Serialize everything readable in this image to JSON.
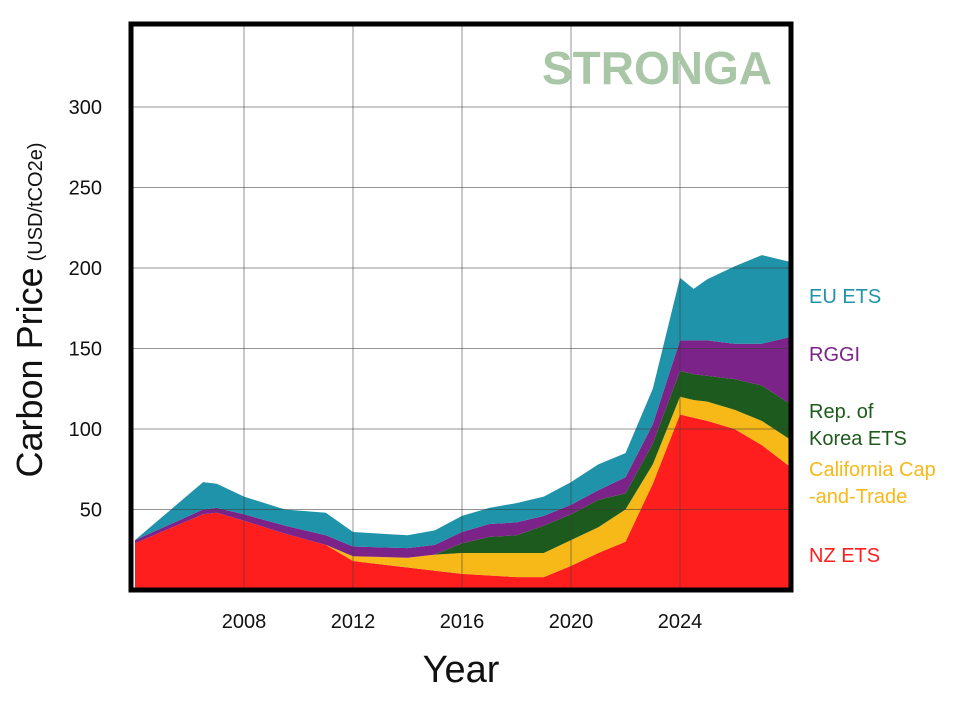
{
  "chart_data": {
    "type": "area",
    "stacked": true,
    "title": "",
    "xlabel": "Year",
    "ylabel": "Carbon Price",
    "ylabel_unit": "(USD/tCO2e)",
    "watermark": "STRONGA",
    "xlim": [
      2004,
      2028
    ],
    "ylim": [
      0,
      350
    ],
    "xticks": [
      2008,
      2012,
      2016,
      2020,
      2024
    ],
    "yticks": [
      50,
      100,
      150,
      200,
      250,
      300
    ],
    "grid": true,
    "legend_position": "right",
    "x": [
      2004,
      2006.5,
      2007,
      2008,
      2009.5,
      2011,
      2012,
      2014,
      2015,
      2016,
      2017,
      2018,
      2019,
      2020,
      2021,
      2022,
      2023,
      2024,
      2024.5,
      2025,
      2026,
      2027,
      2028
    ],
    "series": [
      {
        "name": "NZ ETS",
        "color": "#ff1e1e",
        "label_lines": [
          "NZ ETS"
        ],
        "values": [
          29,
          47,
          48,
          43,
          35,
          28,
          18,
          14,
          12,
          10,
          9,
          8,
          8,
          15,
          23,
          30,
          66,
          109,
          107,
          105,
          100,
          90,
          77
        ]
      },
      {
        "name": "California Cap-and-Trade",
        "color": "#f7b917",
        "label_lines": [
          "California Cap",
          "-and-Trade"
        ],
        "values": [
          0,
          0,
          0,
          0,
          0,
          0,
          3,
          6,
          10,
          13,
          14,
          15,
          15,
          16,
          16,
          20,
          12,
          11,
          11,
          12,
          12,
          15,
          17
        ]
      },
      {
        "name": "Rep. of Korea ETS",
        "color": "#1d5a1d",
        "label_lines": [
          "Rep. of",
          "Korea ETS"
        ],
        "values": [
          0,
          0,
          0,
          0,
          0,
          0,
          0,
          0,
          0,
          6,
          10,
          11,
          17,
          16,
          17,
          10,
          13,
          16,
          16,
          16,
          19,
          22,
          22
        ]
      },
      {
        "name": "RGGI",
        "color": "#7b2388",
        "label_lines": [
          "RGGI"
        ],
        "values": [
          2,
          3,
          3,
          4,
          5,
          6,
          6,
          6,
          6,
          7,
          8,
          8,
          6,
          6,
          6,
          10,
          12,
          19,
          21,
          22,
          22,
          26,
          41
        ]
      },
      {
        "name": "EU ETS",
        "color": "#1e93aa",
        "label_lines": [
          "EU ETS"
        ],
        "values": [
          0,
          17,
          15,
          11,
          10,
          14,
          9,
          8,
          9,
          10,
          10,
          12,
          12,
          14,
          16,
          15,
          22,
          39,
          32,
          38,
          48,
          55,
          47
        ]
      }
    ],
    "legend_order": [
      "EU ETS",
      "RGGI",
      "Rep. of Korea ETS",
      "California Cap-and-Trade",
      "NZ ETS"
    ]
  }
}
